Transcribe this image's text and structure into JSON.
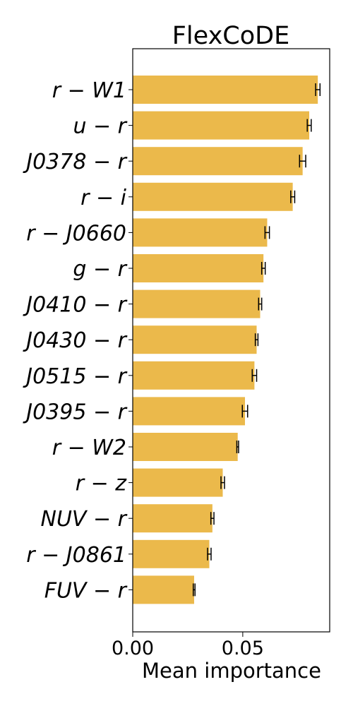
{
  "chart_data": {
    "type": "bar",
    "orientation": "horizontal",
    "title": "FlexCoDE",
    "xlabel": "Mean importance",
    "ylabel": "",
    "xlim": [
      0,
      0.0895
    ],
    "xticks": [
      "0.00",
      "0.05"
    ],
    "xtick_values": [
      0.0,
      0.05
    ],
    "grid": false,
    "bar_color": "#ebb94b",
    "error_color": "#000000",
    "categories": [
      "r − W1",
      "u − r",
      "J0378 − r",
      "r − i",
      "r − J0660",
      "g − r",
      "J0410 − r",
      "J0430 − r",
      "J0515 − r",
      "J0395 − r",
      "r − W2",
      "r − z",
      "NUV − r",
      "r − J0861",
      "FUV − r"
    ],
    "values": [
      0.0841,
      0.0802,
      0.0772,
      0.0727,
      0.0611,
      0.0594,
      0.0579,
      0.0563,
      0.0553,
      0.051,
      0.0477,
      0.0409,
      0.0362,
      0.0348,
      0.0279
    ],
    "errors": [
      0.001,
      0.0009,
      0.0014,
      0.0009,
      0.001,
      0.0008,
      0.0007,
      0.0006,
      0.001,
      0.0012,
      0.0004,
      0.0008,
      0.0007,
      0.0008,
      0.0004
    ]
  }
}
